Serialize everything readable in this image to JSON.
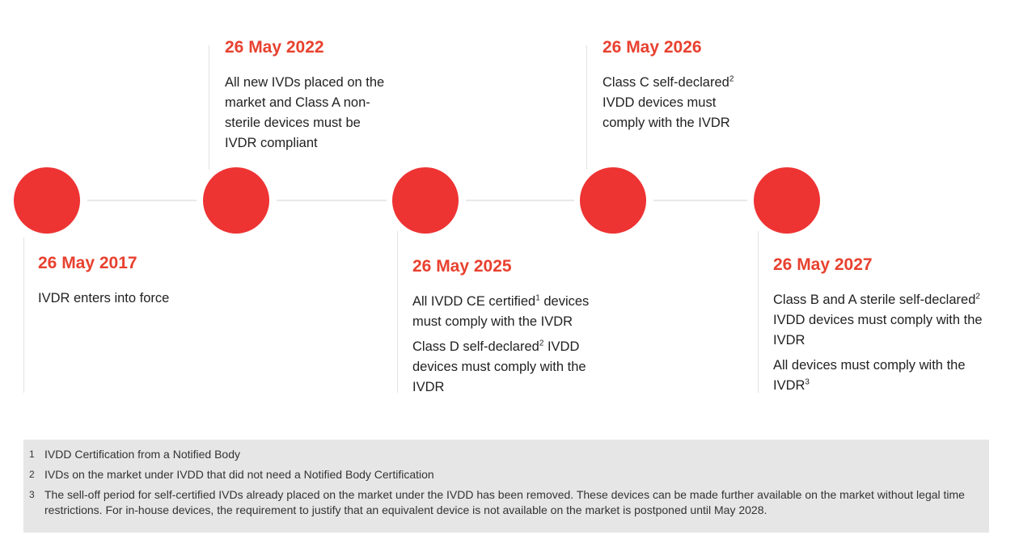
{
  "timeline": {
    "events": [
      {
        "date": "26 May 2017",
        "paragraphs": [
          {
            "text": "IVDR enters into force",
            "sup": ""
          }
        ]
      },
      {
        "date": "26 May 2022",
        "paragraphs": [
          {
            "text": "All new IVDs placed on the market and Class A non-sterile devices must be IVDR compliant",
            "sup": ""
          }
        ]
      },
      {
        "date": "26 May 2025",
        "paragraphs": [
          {
            "before": "All IVDD CE certified",
            "sup": "1",
            "after": " devices must comply with the IVDR"
          },
          {
            "before": "Class D self-declared",
            "sup": "2",
            "after": " IVDD devices must comply with the IVDR"
          }
        ]
      },
      {
        "date": "26 May 2026",
        "paragraphs": [
          {
            "before": "Class C self-declared",
            "sup": "2",
            "after": " IVDD devices must comply with the IVDR"
          }
        ]
      },
      {
        "date": "26 May 2027",
        "paragraphs": [
          {
            "before": "Class B and A sterile self-declared",
            "sup": "2",
            "after": " IVDD devices must comply with the IVDR"
          },
          {
            "before": "All devices must comply with the IVDR",
            "sup": "3",
            "after": ""
          }
        ]
      }
    ],
    "accent_color": "#ee3333",
    "date_color": "#e8412f"
  },
  "footnotes": [
    {
      "number": "1",
      "text": "IVDD Certification from a Notified Body"
    },
    {
      "number": "2",
      "text": "IVDs on the market under IVDD that did not need a Notified Body Certification"
    },
    {
      "number": "3",
      "text": "The sell-off period for self-certified IVDs already placed on the market under the IVDD has been removed. These devices can be made further available on the market without legal time restrictions. For in-house devices, the requirement to justify that an equivalent device is not available on the market is postponed until May 2028."
    }
  ]
}
